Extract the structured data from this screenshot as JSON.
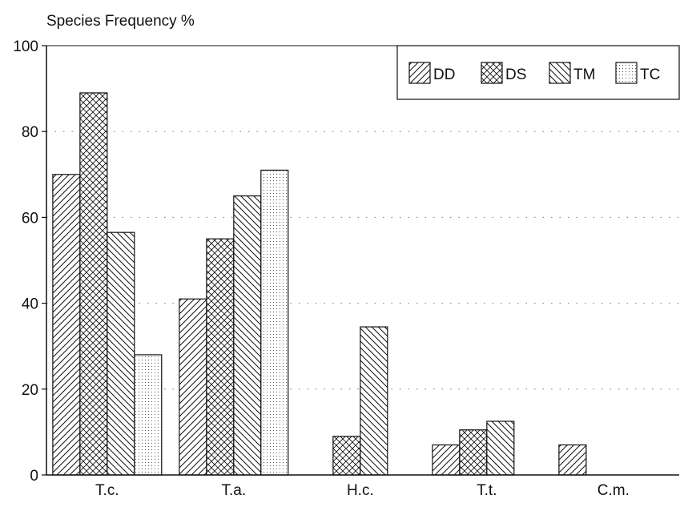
{
  "chart_data": {
    "type": "bar",
    "title": "Species Frequency %",
    "xlabel": "",
    "ylabel": "",
    "ylim": [
      0,
      100
    ],
    "yticks": [
      0,
      20,
      40,
      60,
      80,
      100
    ],
    "categories": [
      "T.c.",
      "T.a.",
      "H.c.",
      "T.t.",
      "C.m."
    ],
    "series": [
      {
        "name": "DD",
        "pattern": "diagonal-right",
        "values": [
          70,
          41,
          0,
          7,
          7
        ]
      },
      {
        "name": "DS",
        "pattern": "crosshatch",
        "values": [
          89,
          55,
          9,
          10.5,
          0
        ]
      },
      {
        "name": "TM",
        "pattern": "diagonal-left",
        "values": [
          56.5,
          65,
          34.5,
          12.5,
          0
        ]
      },
      {
        "name": "TC",
        "pattern": "dots",
        "values": [
          28,
          71,
          0,
          0,
          0
        ]
      }
    ],
    "grid": "dotted-horizontal",
    "legend_position": "top-right",
    "colors": {
      "stroke": "#111111",
      "background": "#ffffff"
    }
  }
}
